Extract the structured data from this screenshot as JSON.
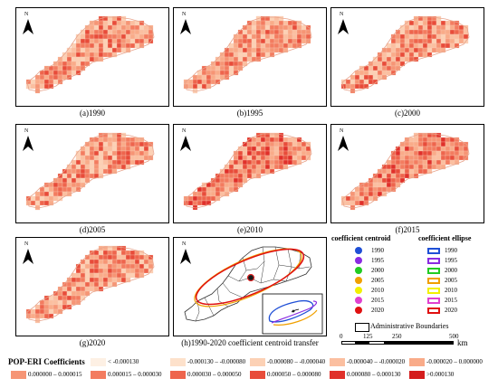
{
  "north_label": "N",
  "panels": [
    {
      "id": "a",
      "caption": "(a)1990"
    },
    {
      "id": "b",
      "caption": "(b)1995"
    },
    {
      "id": "c",
      "caption": "(c)2000"
    },
    {
      "id": "d",
      "caption": "(d)2005"
    },
    {
      "id": "e",
      "caption": "(e)2010"
    },
    {
      "id": "f",
      "caption": "(f)2015"
    },
    {
      "id": "g",
      "caption": "(g)2020"
    },
    {
      "id": "h",
      "caption": "(h)1990-2020 coefficient centroid transfer"
    }
  ],
  "centroid_legend": {
    "title": "coefficient centroid",
    "items": [
      {
        "year": "1990",
        "color": "#1f4fd6"
      },
      {
        "year": "1995",
        "color": "#8a2be2"
      },
      {
        "year": "2000",
        "color": "#22cc22"
      },
      {
        "year": "2005",
        "color": "#f0a000"
      },
      {
        "year": "2010",
        "color": "#f2f000"
      },
      {
        "year": "2015",
        "color": "#e040d0"
      },
      {
        "year": "2020",
        "color": "#e01010"
      }
    ]
  },
  "ellipse_legend": {
    "title": "coefficient ellipse",
    "items": [
      {
        "year": "1990",
        "color": "#1f4fd6"
      },
      {
        "year": "1995",
        "color": "#8a2be2"
      },
      {
        "year": "2000",
        "color": "#22cc22"
      },
      {
        "year": "2005",
        "color": "#f0a000"
      },
      {
        "year": "2010",
        "color": "#f2f000"
      },
      {
        "year": "2015",
        "color": "#e040d0"
      },
      {
        "year": "2020",
        "color": "#e01010"
      }
    ]
  },
  "admin_label": "Administrative Boundaries",
  "scale_bar": {
    "ticks": [
      "0",
      "125",
      "250",
      "",
      "500"
    ],
    "unit": "km"
  },
  "coef_legend": {
    "title": "POP-ERI Coefficients",
    "classes": [
      {
        "label": "< -0.000130",
        "color": "#fdf0e4"
      },
      {
        "label": "-0.000130 – -0.000080",
        "color": "#fde1cb"
      },
      {
        "label": "-0.000080 – -0.000040",
        "color": "#fcd1b5"
      },
      {
        "label": "-0.000040 – -0.000020",
        "color": "#fbbfa0"
      },
      {
        "label": "-0.000020 – 0.000000",
        "color": "#f9ab89"
      },
      {
        "label": "0.000000 – 0.000015",
        "color": "#f69575"
      },
      {
        "label": "0.000015 – 0.000030",
        "color": "#f37c60"
      },
      {
        "label": "0.000030 – 0.000050",
        "color": "#ee654d"
      },
      {
        "label": "0.000050 – 0.000080",
        "color": "#e84c3a"
      },
      {
        "label": "0.000080 – 0.000130",
        "color": "#e0302a"
      },
      {
        "label": ">0.000130",
        "color": "#d41c1c"
      }
    ]
  }
}
